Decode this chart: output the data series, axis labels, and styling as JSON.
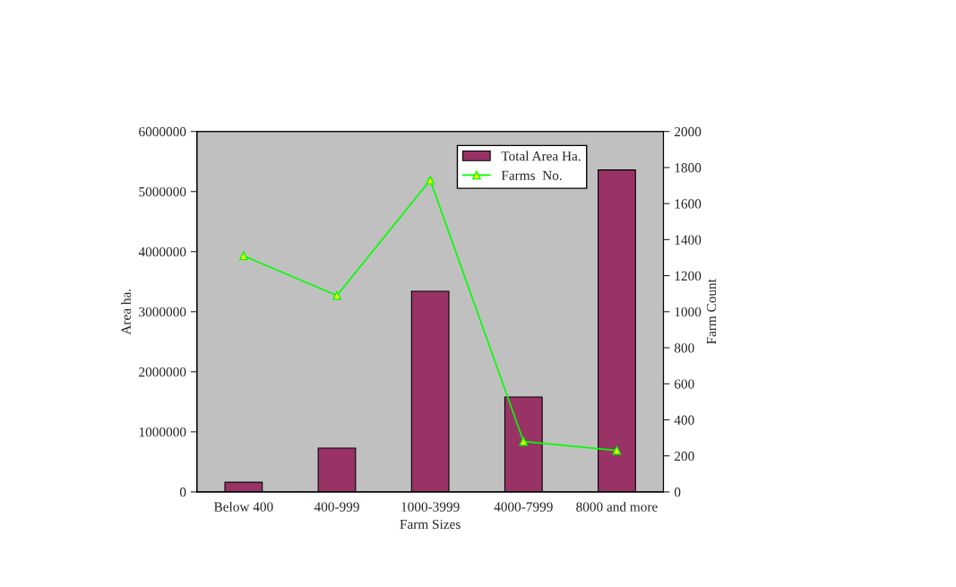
{
  "chart_data": {
    "type": "bar",
    "xlabel": "Farm Sizes",
    "ylabel": "Area ha.",
    "y2label": "Farm Count",
    "categories": [
      "Below 400",
      "400-999",
      "1000-3999",
      "4000-7999",
      "8000 and more"
    ],
    "series": [
      {
        "name": "Total Area Ha.",
        "color": "#993366",
        "values": [
          160000,
          730000,
          3340000,
          1580000,
          5360000
        ]
      },
      {
        "name": "Farms  No.",
        "type": "line",
        "axis": "y2",
        "color": "#00ff00",
        "marker": "triangle",
        "values": [
          1310,
          1090,
          1730,
          280,
          230
        ]
      }
    ],
    "ylim": [
      0,
      6000000
    ],
    "yticks": [
      0,
      1000000,
      2000000,
      3000000,
      4000000,
      5000000,
      6000000
    ],
    "y2lim": [
      0,
      2000
    ],
    "y2ticks": [
      0,
      200,
      400,
      600,
      800,
      1000,
      1200,
      1400,
      1600,
      1800,
      2000
    ],
    "grid": false,
    "legend": "top right"
  }
}
